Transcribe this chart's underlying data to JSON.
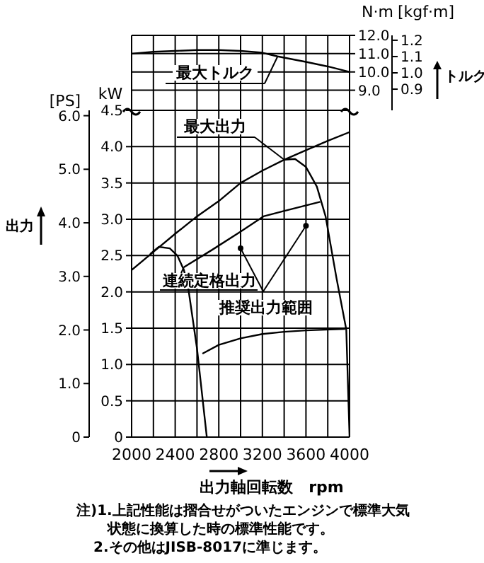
{
  "chart_data": [
    {
      "type": "line",
      "ylabel": "N·m",
      "y2label": "[kgf·m]",
      "annotations": [
        "トルク"
      ],
      "xlim": [
        2000,
        4000
      ],
      "xticks": [
        2000,
        2200,
        2400,
        2600,
        2800,
        3000,
        3200,
        3400,
        3600,
        3800,
        4000
      ],
      "ylim": [
        7.9,
        12.0
      ],
      "yticks": [
        {
          "value": 9,
          "label": "9.0"
        },
        {
          "value": 10,
          "label": "10.0"
        },
        {
          "value": 11,
          "label": "11.0"
        },
        {
          "value": 12,
          "label": "12.0"
        }
      ],
      "y2lim": [
        0.77,
        1.23
      ],
      "y2ticks": [
        0.9,
        {
          "value": 1,
          "label": "1.0"
        },
        1.1,
        1.2
      ],
      "grid": true,
      "tick_labels": "y",
      "series": [
        {
          "name": "最大トルク",
          "color": "#000000",
          "x": [
            2000,
            2200,
            2400,
            2600,
            2800,
            3000,
            3200,
            3340,
            3600,
            3800,
            4000
          ],
          "values": [
            11.0,
            11.1,
            11.15,
            11.2,
            11.2,
            11.15,
            11.05,
            10.85,
            10.55,
            10.3,
            10.0
          ]
        }
      ]
    },
    {
      "type": "line",
      "xlabel": "出力軸回転数　rpm",
      "ylabel": "kW",
      "y2label": "[PS]",
      "annotations": [
        "出力",
        "注)1.上記性能は摺合せがついたエンジンで標準大気",
        "状態に換算した時の標準性能です。",
        "2.その他はJISB-8017に準じます。"
      ],
      "xlim": [
        2000,
        4000
      ],
      "xticks": [
        2000,
        {
          "value": 2200,
          "label": null
        },
        2400,
        {
          "value": 2600,
          "label": null
        },
        2800,
        {
          "value": 3000,
          "label": null
        },
        3200,
        {
          "value": 3400,
          "label": null
        },
        3600,
        {
          "value": 3800,
          "label": null
        },
        4000
      ],
      "ylim": [
        0,
        4.5
      ],
      "yticks": [
        0,
        0.5,
        {
          "value": 1,
          "label": "1.0"
        },
        1.5,
        {
          "value": 2,
          "label": "2.0"
        },
        2.5,
        {
          "value": 3,
          "label": "3.0"
        },
        3.5,
        {
          "value": 4,
          "label": "4.0"
        },
        4.5
      ],
      "y2lim": [
        0,
        6.1
      ],
      "y2ticks": [
        0,
        {
          "value": 1,
          "label": "1.0"
        },
        {
          "value": 2,
          "label": "2.0"
        },
        {
          "value": 3,
          "label": "3.0"
        },
        {
          "value": 4,
          "label": "4.0"
        },
        {
          "value": 5,
          "label": "5.0"
        },
        {
          "value": 6,
          "label": "6.0"
        }
      ],
      "grid": true,
      "series": [
        {
          "name": "最大出力",
          "color": "#000000",
          "x": [
            2000,
            2200,
            2400,
            2600,
            2800,
            3000,
            3200,
            3400,
            3500,
            3600,
            3700,
            3780,
            3880,
            3970,
            4000
          ],
          "values": [
            2.3,
            2.55,
            2.8,
            3.04,
            3.25,
            3.5,
            3.67,
            3.82,
            3.83,
            3.72,
            3.45,
            3.04,
            2.19,
            1.48,
            0
          ]
        },
        {
          "color": "#000000",
          "x": [
            3400,
            3600,
            3800,
            4000
          ],
          "values": [
            3.82,
            3.95,
            4.08,
            4.2
          ]
        },
        {
          "color": "#000000",
          "x": [
            2170,
            2250,
            2350,
            2420,
            2480,
            2520,
            2600,
            2690
          ],
          "values": [
            2.52,
            2.62,
            2.6,
            2.5,
            2.3,
            2.05,
            1.22,
            0
          ]
        },
        {
          "name": "連続定格出力",
          "color": "#000000",
          "x": [
            2480,
            2740,
            3000,
            3210,
            3390,
            3730
          ],
          "values": [
            2.34,
            2.58,
            2.83,
            3.04,
            3.11,
            3.24
          ]
        },
        {
          "color": "#000000",
          "x": [
            2650,
            2800,
            3000,
            3200,
            3400,
            3600,
            3960
          ],
          "values": [
            1.15,
            1.27,
            1.36,
            1.42,
            1.45,
            1.47,
            1.49
          ]
        },
        {
          "name": "推奨出力範囲",
          "type": "scatter",
          "color": "#000000",
          "x": [
            3000,
            3600
          ],
          "values": [
            2.6,
            2.91
          ]
        }
      ]
    }
  ]
}
